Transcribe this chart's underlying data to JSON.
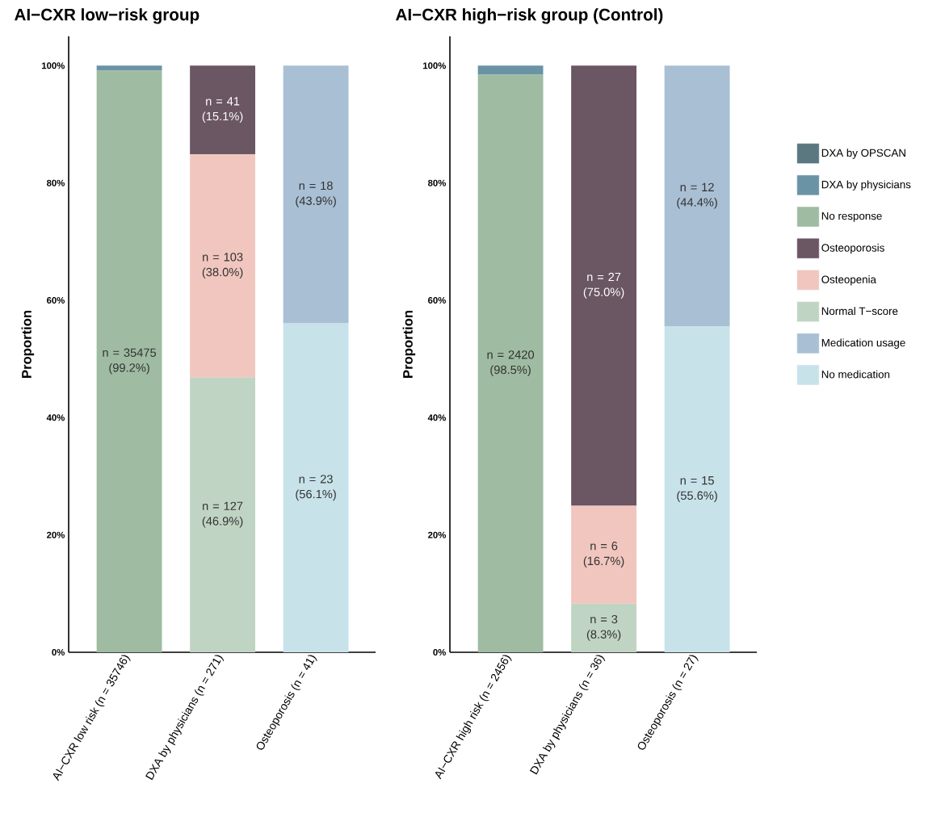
{
  "chart_data": [
    {
      "type": "bar",
      "title": "AI−CXR low−risk group",
      "ylabel": "Proportion",
      "stacked": true,
      "categories": [
        "AI−CXR low risk (n = 35746)",
        "DXA by physicians (n = 271)",
        "Osteoporosis (n = 41)"
      ],
      "ylim": [
        0,
        105
      ],
      "yticks": [
        {
          "value": 0,
          "label": "0%"
        },
        {
          "value": 20,
          "label": "20%"
        },
        {
          "value": 40,
          "label": "40%"
        },
        {
          "value": 60,
          "label": "60%"
        },
        {
          "value": 80,
          "label": "80%"
        },
        {
          "value": 100,
          "label": "100%"
        }
      ],
      "series": [
        {
          "color": "#c8e2ea",
          "values": [
            null,
            null,
            56.1
          ],
          "value_labels": [
            null,
            null,
            "n = 23 (56.1%)"
          ]
        },
        {
          "color": "#a9bfd4",
          "values": [
            null,
            null,
            43.9
          ],
          "value_labels": [
            null,
            null,
            "n = 18 (43.9%)"
          ]
        },
        {
          "color": "#c0d4c3",
          "values": [
            null,
            46.9,
            null
          ],
          "value_labels": [
            null,
            "n = 127 (46.9%)",
            null
          ]
        },
        {
          "color": "#f0c6be",
          "values": [
            null,
            38.0,
            null
          ],
          "value_labels": [
            null,
            "n = 103 (38.0%)",
            null
          ]
        },
        {
          "color": "#6b5663",
          "values": [
            null,
            15.1,
            null
          ],
          "value_labels": [
            null,
            "n = 41 (15.1%)",
            null
          ]
        },
        {
          "color": "#9fbca2",
          "values": [
            99.2,
            null,
            null
          ],
          "value_labels": [
            "n = 35475 (99.2%)",
            null,
            null
          ]
        },
        {
          "color": "#6a93a6",
          "values": [
            0.8,
            null,
            null
          ]
        },
        {
          "color": "#5b7780",
          "values": [
            null,
            null,
            null
          ]
        }
      ]
    },
    {
      "type": "bar",
      "title": "AI−CXR high−risk group (Control)",
      "ylabel": "Proportion",
      "stacked": true,
      "legend": "right",
      "categories": [
        "AI−CXR high risk (n = 2456)",
        "DXA by physicians (n = 36)",
        "Osteoporosis (n = 27)"
      ],
      "ylim": [
        0,
        105
      ],
      "yticks": [
        {
          "value": 0,
          "label": "0%"
        },
        {
          "value": 20,
          "label": "20%"
        },
        {
          "value": 40,
          "label": "40%"
        },
        {
          "value": 60,
          "label": "60%"
        },
        {
          "value": 80,
          "label": "80%"
        },
        {
          "value": 100,
          "label": "100%"
        }
      ],
      "series": [
        {
          "name": "No medication",
          "color": "#c8e2ea",
          "values": [
            null,
            null,
            55.6
          ],
          "value_labels": [
            null,
            null,
            "n = 15 (55.6%)"
          ]
        },
        {
          "name": "Medication usage",
          "color": "#a9bfd4",
          "values": [
            null,
            null,
            44.4
          ],
          "value_labels": [
            null,
            null,
            "n = 12 (44.4%)"
          ]
        },
        {
          "name": "Normal T−score",
          "color": "#c0d4c3",
          "values": [
            null,
            8.3,
            null
          ],
          "value_labels": [
            null,
            "n = 3 (8.3%)",
            null
          ]
        },
        {
          "name": "Osteopenia",
          "color": "#f0c6be",
          "values": [
            null,
            16.7,
            null
          ],
          "value_labels": [
            null,
            "n = 6 (16.7%)",
            null
          ]
        },
        {
          "name": "Osteoporosis",
          "color": "#6b5663",
          "values": [
            null,
            75.0,
            null
          ],
          "value_labels": [
            null,
            "n = 27 (75.0%)",
            null
          ]
        },
        {
          "name": "No response",
          "color": "#9fbca2",
          "values": [
            98.5,
            null,
            null
          ],
          "value_labels": [
            "n = 2420 (98.5%)",
            null,
            null
          ]
        },
        {
          "name": "DXA by physicians",
          "color": "#6a93a6",
          "values": [
            1.5,
            null,
            null
          ]
        },
        {
          "name": "DXA by OPSCAN",
          "color": "#5b7780",
          "values": [
            null,
            null,
            null
          ]
        }
      ]
    }
  ]
}
